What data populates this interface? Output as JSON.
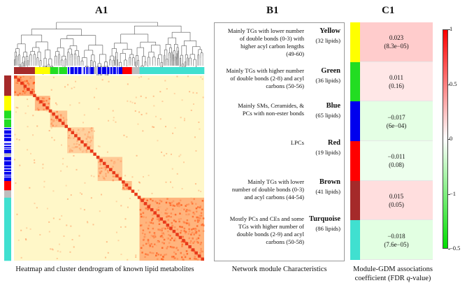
{
  "panels": {
    "a1": {
      "title": "A1",
      "caption": "Heatmap and cluster dendrogram of known lipid metabolites"
    },
    "b1": {
      "title": "B1",
      "caption": "Network module Characteristics"
    },
    "c1": {
      "title": "C1",
      "caption_line1": "Module-GDM associations",
      "caption_line2_prefix": "coefficient (FDR ",
      "caption_q": "q",
      "caption_line2_suffix": "-value)"
    }
  },
  "colors": {
    "yellow": "#ffff00",
    "green": "#22dd22",
    "blue": "#0000ee",
    "red": "#ff0000",
    "brown": "#a52a2a",
    "turquoise": "#40e0d0",
    "grey": "#bebebe"
  },
  "chart_data": {
    "type": "heatmap",
    "title": "Module-GDM associations coefficient (FDR q-value)",
    "modules": [
      {
        "name": "Yellow",
        "color": "#ffff00",
        "lipids": "(32 lipids)",
        "description": [
          "Mainly TGs with lower number",
          "of double bonds (0-3) with",
          "higher acyl carbon lengths",
          "(49-60)"
        ],
        "coefficient": 0.023,
        "coef_label": "0.023",
        "q_label": "(8.3e−05)"
      },
      {
        "name": "Green",
        "color": "#22dd22",
        "lipids": "(36 lipids)",
        "description": [
          "Mainly TGs with higher number",
          "of double bonds (2-8) and acyl",
          "carbons (50-56)"
        ],
        "coefficient": 0.011,
        "coef_label": "0.011",
        "q_label": "(0.16)"
      },
      {
        "name": "Blue",
        "color": "#0000ee",
        "lipids": "(65 lipids)",
        "description": [
          "Mainly SMs, Ceramides, &",
          "PCs with non-ester bonds"
        ],
        "coefficient": -0.017,
        "coef_label": "−0.017",
        "q_label": "(6e−04)"
      },
      {
        "name": "Red",
        "color": "#ff0000",
        "lipids": "(19 lipids)",
        "description": [
          "LPCs"
        ],
        "coefficient": -0.011,
        "coef_label": "−0.011",
        "q_label": "(0.08)"
      },
      {
        "name": "Brown",
        "color": "#a52a2a",
        "lipids": "(41 lipids)",
        "description": [
          "Mainly TGs with lower",
          "number of double bonds (0-3)",
          "and acyl carbons (44-54)"
        ],
        "coefficient": 0.015,
        "coef_label": "0.015",
        "q_label": "(0.05)"
      },
      {
        "name": "Turquoise",
        "color": "#40e0d0",
        "lipids": "(86 lipids)",
        "description": [
          "Mostly PCs and CEs and some",
          "TGs with higher number of",
          "double bonds (2-9) and acyl",
          "carbons (50-58)"
        ],
        "coefficient": -0.018,
        "coef_label": "−0.018",
        "q_label": "(7.6e−05)"
      }
    ],
    "legend_ticks": [
      "1",
      "0.5",
      "0",
      "−1",
      "−0.5"
    ],
    "legend_range": [
      -0.5,
      1
    ],
    "legend_colors": [
      "#00dd00",
      "#ffffff",
      "#ff0000"
    ]
  }
}
